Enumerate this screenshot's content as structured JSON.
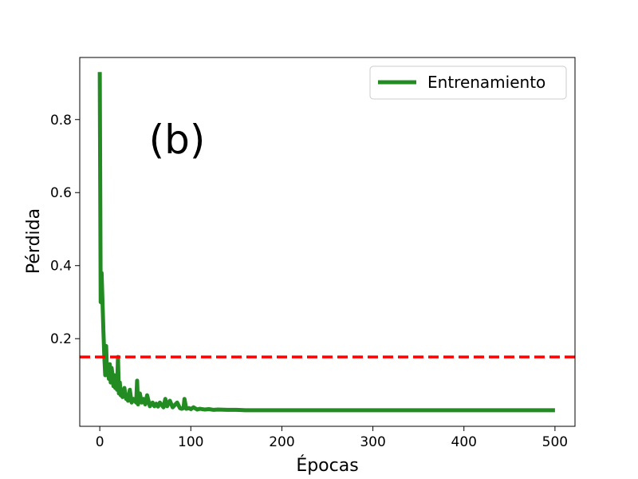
{
  "chart_data": {
    "type": "line",
    "panel_label": "(b)",
    "xlabel": "Épocas",
    "ylabel": "Pérdida",
    "xlim": [
      -22,
      522
    ],
    "ylim": [
      -0.04,
      0.97
    ],
    "xticks": [
      0,
      100,
      200,
      300,
      400,
      500
    ],
    "xtick_labels": [
      "0",
      "100",
      "200",
      "300",
      "400",
      "500"
    ],
    "yticks": [
      0.2,
      0.4,
      0.6,
      0.8
    ],
    "ytick_labels": [
      "0.2",
      "0.4",
      "0.6",
      "0.8"
    ],
    "grid": false,
    "legend_position": "upper right",
    "series": [
      {
        "name": "Entrenamiento",
        "color": "#228b22",
        "x": [
          0,
          1,
          2,
          3,
          4,
          5,
          6,
          7,
          8,
          9,
          10,
          11,
          12,
          13,
          14,
          15,
          16,
          17,
          18,
          19,
          20,
          21,
          22,
          23,
          24,
          25,
          27,
          29,
          30,
          31,
          33,
          35,
          37,
          40,
          41,
          42,
          44,
          46,
          48,
          50,
          52,
          55,
          58,
          60,
          62,
          64,
          66,
          70,
          72,
          74,
          77,
          80,
          85,
          88,
          90,
          92,
          93,
          95,
          98,
          100,
          103,
          107,
          110,
          115,
          120,
          125,
          130,
          140,
          150,
          160,
          180,
          200,
          250,
          300,
          350,
          400,
          450,
          500
        ],
        "y": [
          0.93,
          0.3,
          0.38,
          0.3,
          0.22,
          0.15,
          0.1,
          0.18,
          0.1,
          0.12,
          0.09,
          0.13,
          0.08,
          0.12,
          0.1,
          0.07,
          0.1,
          0.065,
          0.09,
          0.06,
          0.15,
          0.05,
          0.08,
          0.045,
          0.06,
          0.04,
          0.065,
          0.035,
          0.045,
          0.03,
          0.06,
          0.025,
          0.035,
          0.025,
          0.085,
          0.02,
          0.05,
          0.025,
          0.035,
          0.02,
          0.045,
          0.015,
          0.025,
          0.015,
          0.022,
          0.014,
          0.025,
          0.012,
          0.035,
          0.015,
          0.03,
          0.012,
          0.025,
          0.01,
          0.008,
          0.01,
          0.035,
          0.008,
          0.01,
          0.007,
          0.012,
          0.006,
          0.008,
          0.006,
          0.007,
          0.005,
          0.006,
          0.005,
          0.005,
          0.004,
          0.004,
          0.004,
          0.004,
          0.004,
          0.004,
          0.004,
          0.004,
          0.004
        ]
      }
    ],
    "hlines": [
      {
        "y": 0.15,
        "color": "#ff0000",
        "style": "dashed"
      }
    ]
  }
}
